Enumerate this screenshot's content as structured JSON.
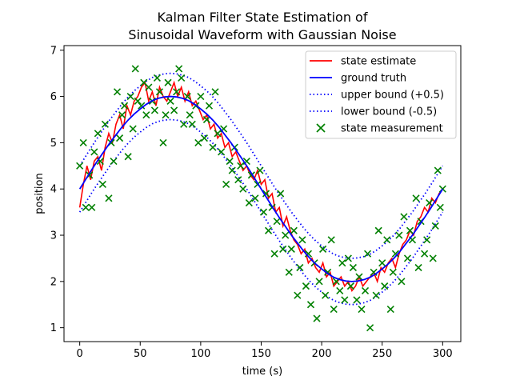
{
  "chart_data": {
    "type": "line",
    "title_line1": "Kalman Filter State Estimation of",
    "title_line2": "Sinusoidal Waveform with Gaussian Noise",
    "xlabel": "time (s)",
    "ylabel": "position",
    "xlim": [
      -13,
      315
    ],
    "ylim": [
      0.7,
      7.1
    ],
    "xticks": [
      0,
      50,
      100,
      150,
      200,
      250,
      300
    ],
    "yticks": [
      1,
      2,
      3,
      4,
      5,
      6,
      7
    ],
    "grid": false,
    "legend_position": "upper-right",
    "colors": {
      "state_estimate": "#ff0000",
      "ground_truth": "#0000ff",
      "bounds": "#0000ff",
      "measurement": "#008000"
    },
    "series": [
      {
        "name": "state estimate",
        "x": [
          0,
          3,
          6,
          9,
          12,
          15,
          18,
          21,
          24,
          27,
          30,
          33,
          36,
          39,
          42,
          45,
          48,
          51,
          54,
          57,
          60,
          63,
          66,
          69,
          72,
          75,
          78,
          81,
          84,
          87,
          90,
          93,
          96,
          99,
          102,
          105,
          108,
          111,
          114,
          117,
          120,
          123,
          126,
          129,
          132,
          135,
          138,
          141,
          144,
          147,
          150,
          153,
          156,
          159,
          162,
          165,
          168,
          171,
          174,
          177,
          180,
          183,
          186,
          189,
          192,
          195,
          198,
          201,
          204,
          207,
          210,
          213,
          216,
          219,
          222,
          225,
          228,
          231,
          234,
          237,
          240,
          243,
          246,
          249,
          252,
          255,
          258,
          261,
          264,
          267,
          270,
          273,
          276,
          279,
          282,
          285,
          288,
          291,
          294,
          297,
          300
        ],
        "y": [
          3.6,
          4.1,
          4.5,
          4.2,
          4.6,
          4.7,
          4.4,
          4.9,
          5.2,
          5.0,
          5.4,
          5.6,
          5.3,
          5.8,
          5.6,
          5.9,
          6.0,
          6.2,
          6.3,
          5.9,
          6.1,
          5.8,
          6.2,
          6.0,
          5.9,
          6.1,
          6.3,
          6.0,
          6.2,
          5.9,
          6.1,
          5.8,
          5.9,
          5.7,
          5.5,
          5.6,
          5.3,
          5.4,
          5.1,
          5.2,
          4.9,
          5.0,
          4.7,
          4.8,
          4.6,
          4.4,
          4.5,
          4.3,
          4.2,
          4.4,
          4.1,
          4.2,
          3.8,
          3.9,
          3.5,
          3.6,
          3.2,
          3.4,
          3.1,
          2.9,
          2.8,
          2.6,
          2.7,
          2.4,
          2.5,
          2.3,
          2.2,
          2.4,
          2.1,
          2.2,
          1.9,
          2.0,
          2.1,
          1.9,
          2.0,
          1.8,
          1.9,
          2.1,
          1.9,
          2.0,
          2.1,
          2.2,
          2.0,
          2.3,
          2.2,
          2.4,
          2.5,
          2.3,
          2.6,
          2.8,
          2.9,
          3.1,
          3.0,
          3.3,
          3.4,
          3.6,
          3.5,
          3.8,
          3.7,
          3.9,
          4.0
        ]
      },
      {
        "name": "ground truth",
        "x": [
          0,
          5,
          10,
          15,
          20,
          25,
          30,
          35,
          40,
          45,
          50,
          55,
          60,
          65,
          70,
          75,
          80,
          85,
          90,
          95,
          100,
          105,
          110,
          115,
          120,
          125,
          130,
          135,
          140,
          145,
          150,
          155,
          160,
          165,
          170,
          175,
          180,
          185,
          190,
          195,
          200,
          205,
          210,
          215,
          220,
          225,
          230,
          235,
          240,
          245,
          250,
          255,
          260,
          265,
          270,
          275,
          280,
          285,
          290,
          295,
          300
        ],
        "y": [
          4.0,
          4.21,
          4.42,
          4.62,
          4.81,
          5.0,
          5.17,
          5.34,
          5.49,
          5.62,
          5.73,
          5.83,
          5.91,
          5.96,
          5.99,
          6.0,
          5.99,
          5.96,
          5.91,
          5.83,
          5.73,
          5.62,
          5.49,
          5.34,
          5.17,
          5.0,
          4.81,
          4.62,
          4.42,
          4.21,
          4.0,
          3.79,
          3.58,
          3.38,
          3.19,
          3.0,
          2.83,
          2.66,
          2.51,
          2.38,
          2.27,
          2.17,
          2.09,
          2.04,
          2.01,
          2.0,
          2.01,
          2.04,
          2.09,
          2.17,
          2.27,
          2.38,
          2.51,
          2.66,
          2.83,
          3.0,
          3.19,
          3.38,
          3.58,
          3.79,
          4.0
        ]
      },
      {
        "name": "upper bound (+0.5)",
        "offset": 0.5
      },
      {
        "name": "lower bound (-0.5)",
        "offset": -0.5
      },
      {
        "name": "state measurement",
        "x": [
          0,
          3,
          5,
          8,
          10,
          12,
          15,
          17,
          19,
          21,
          24,
          26,
          28,
          31,
          33,
          35,
          37,
          40,
          42,
          44,
          46,
          48,
          51,
          53,
          55,
          57,
          60,
          62,
          64,
          66,
          69,
          71,
          73,
          75,
          78,
          80,
          82,
          84,
          86,
          89,
          91,
          93,
          96,
          98,
          100,
          103,
          105,
          107,
          110,
          112,
          114,
          117,
          119,
          121,
          124,
          126,
          128,
          131,
          133,
          135,
          138,
          140,
          142,
          145,
          147,
          149,
          152,
          154,
          156,
          159,
          161,
          163,
          166,
          168,
          170,
          173,
          175,
          177,
          180,
          182,
          184,
          187,
          189,
          191,
          194,
          196,
          198,
          201,
          203,
          205,
          208,
          210,
          212,
          215,
          217,
          219,
          222,
          224,
          226,
          229,
          231,
          233,
          236,
          238,
          240,
          243,
          245,
          247,
          250,
          252,
          254,
          257,
          259,
          261,
          264,
          266,
          268,
          271,
          273,
          275,
          278,
          280,
          282,
          285,
          287,
          289,
          292,
          294,
          296,
          298,
          300
        ],
        "y": [
          4.5,
          5.0,
          3.6,
          4.3,
          3.6,
          4.8,
          5.2,
          4.6,
          4.1,
          5.4,
          3.8,
          5.0,
          4.6,
          6.1,
          5.1,
          5.6,
          5.8,
          4.7,
          6.0,
          5.3,
          6.6,
          5.9,
          5.8,
          6.3,
          5.6,
          6.2,
          5.9,
          5.7,
          6.4,
          6.1,
          5.0,
          5.6,
          6.3,
          5.9,
          5.7,
          6.1,
          6.6,
          6.4,
          5.4,
          6.0,
          5.6,
          5.4,
          5.8,
          5.0,
          6.0,
          5.1,
          5.5,
          5.8,
          4.9,
          6.1,
          5.2,
          4.8,
          5.3,
          4.1,
          4.6,
          4.4,
          4.9,
          4.2,
          4.5,
          4.0,
          4.6,
          3.7,
          4.3,
          3.8,
          4.1,
          4.4,
          3.5,
          3.9,
          3.1,
          3.6,
          2.6,
          3.3,
          3.9,
          2.7,
          3.0,
          2.2,
          2.7,
          3.1,
          1.7,
          2.3,
          2.9,
          1.9,
          2.6,
          1.5,
          2.4,
          1.2,
          2.0,
          2.7,
          1.7,
          2.2,
          2.9,
          1.4,
          2.0,
          1.8,
          2.4,
          1.6,
          2.5,
          1.9,
          2.3,
          1.6,
          2.1,
          1.4,
          1.8,
          2.6,
          1.0,
          2.2,
          1.7,
          3.1,
          2.4,
          1.9,
          2.9,
          1.4,
          2.2,
          2.6,
          3.0,
          2.0,
          3.4,
          2.5,
          3.1,
          2.9,
          3.8,
          2.3,
          3.3,
          2.6,
          2.9,
          3.7,
          2.5,
          3.2,
          4.4,
          3.6,
          4.0
        ]
      }
    ]
  }
}
